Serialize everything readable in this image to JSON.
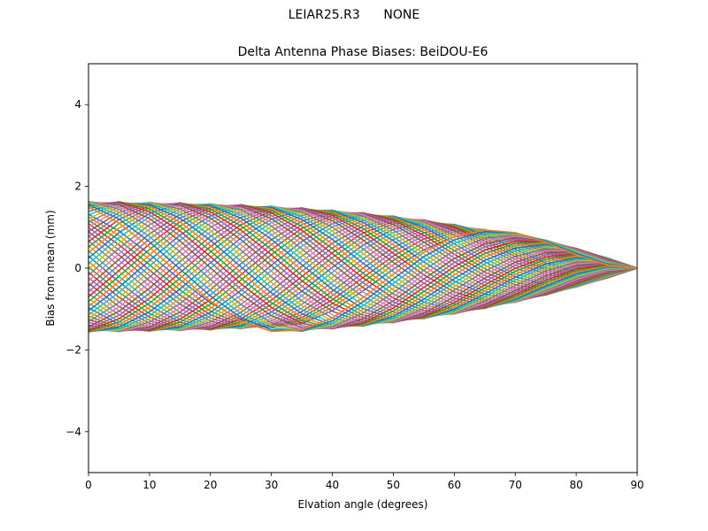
{
  "suptitle": "LEIAR25.R3      NONE",
  "chart_data": {
    "type": "line",
    "title": "Delta Antenna Phase Biases: BeiDOU-E6",
    "xlabel": "Elvation angle (degrees)",
    "ylabel": "Bias from mean (mm)",
    "xlim": [
      0,
      90
    ],
    "ylim": [
      -5,
      5
    ],
    "xticks": [
      0,
      10,
      20,
      30,
      40,
      50,
      60,
      70,
      80,
      90
    ],
    "yticks": [
      -4,
      -2,
      0,
      2,
      4
    ],
    "grid": false,
    "legend": "none",
    "x": [
      0,
      5,
      10,
      15,
      20,
      25,
      30,
      35,
      40,
      45,
      50,
      55,
      60,
      65,
      70,
      75,
      80,
      85,
      90
    ],
    "num_series": 72,
    "colors": [
      "#1f77b4",
      "#ff7f0e",
      "#2ca02c",
      "#d62728",
      "#9467bd",
      "#8c564b",
      "#e377c2",
      "#7f7f7f",
      "#bcbd22",
      "#17becf"
    ],
    "series_model": "y(x) = 1.55*cos(2*pi*(x+6)/75 + phase_k)*(1 - (x/90)^3)*(0.97 + 0.09*k/71), phase_k = 2*pi*k/72, k = 0..71 (mm)"
  }
}
